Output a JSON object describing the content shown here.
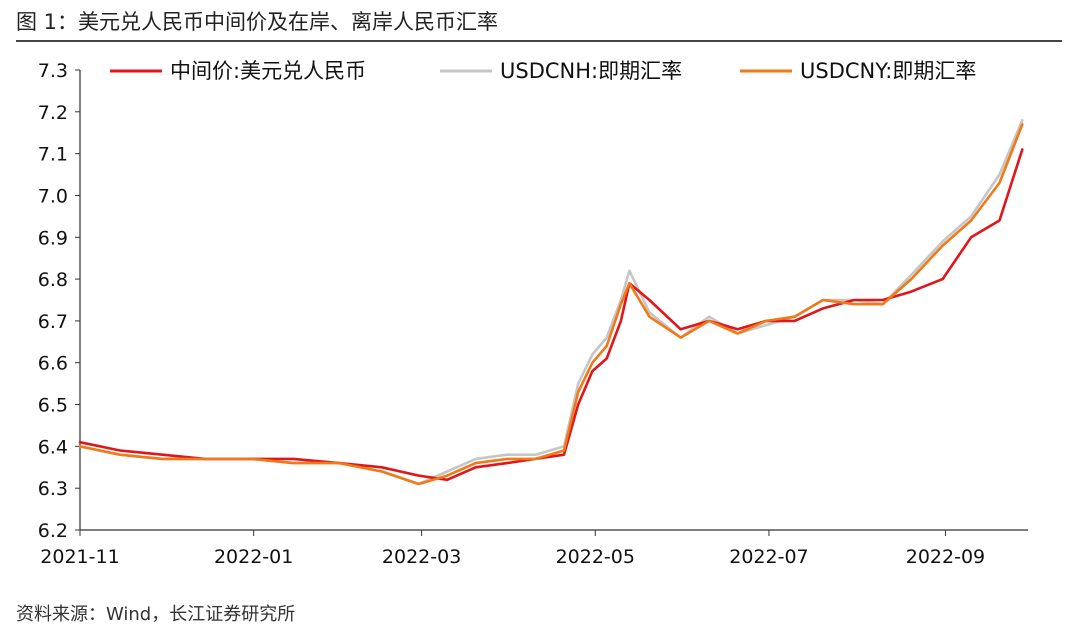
{
  "figure": {
    "title": "图 1：美元兑人民币中间价及在岸、离岸人民币汇率",
    "source": "资料来源：Wind，长江证券研究所"
  },
  "chart_data": {
    "type": "line",
    "title": "",
    "xlabel": "",
    "ylabel": "",
    "x_range": [
      "2021-11-01",
      "2022-09-30"
    ],
    "ylim": [
      6.2,
      7.3
    ],
    "yticks": [
      6.2,
      6.3,
      6.4,
      6.5,
      6.6,
      6.7,
      6.8,
      6.9,
      7.0,
      7.1,
      7.2,
      7.3
    ],
    "ytick_labels": [
      "6.2",
      "6.3",
      "6.4",
      "6.5",
      "6.6",
      "6.7",
      "6.8",
      "6.9",
      "7.0",
      "7.1",
      "7.2",
      "7.3"
    ],
    "xticks": [
      "2021-11-01",
      "2022-01-01",
      "2022-03-01",
      "2022-05-01",
      "2022-07-01",
      "2022-09-01"
    ],
    "xtick_labels": [
      "2021-11",
      "2022-01",
      "2022-03",
      "2022-05",
      "2022-07",
      "2022-09"
    ],
    "grid": false,
    "legend_position": "top",
    "series": [
      {
        "name": "中间价:美元兑人民币",
        "color": "#e0161b",
        "points": [
          [
            "2021-11-01",
            6.41
          ],
          [
            "2021-11-15",
            6.39
          ],
          [
            "2021-11-30",
            6.38
          ],
          [
            "2021-12-15",
            6.37
          ],
          [
            "2021-12-31",
            6.37
          ],
          [
            "2022-01-15",
            6.37
          ],
          [
            "2022-01-31",
            6.36
          ],
          [
            "2022-02-15",
            6.35
          ],
          [
            "2022-02-28",
            6.33
          ],
          [
            "2022-03-10",
            6.32
          ],
          [
            "2022-03-20",
            6.35
          ],
          [
            "2022-03-31",
            6.36
          ],
          [
            "2022-04-10",
            6.37
          ],
          [
            "2022-04-20",
            6.38
          ],
          [
            "2022-04-25",
            6.5
          ],
          [
            "2022-04-30",
            6.58
          ],
          [
            "2022-05-05",
            6.61
          ],
          [
            "2022-05-10",
            6.7
          ],
          [
            "2022-05-13",
            6.79
          ],
          [
            "2022-05-20",
            6.75
          ],
          [
            "2022-05-31",
            6.68
          ],
          [
            "2022-06-10",
            6.7
          ],
          [
            "2022-06-20",
            6.68
          ],
          [
            "2022-06-30",
            6.7
          ],
          [
            "2022-07-10",
            6.7
          ],
          [
            "2022-07-20",
            6.73
          ],
          [
            "2022-07-31",
            6.75
          ],
          [
            "2022-08-10",
            6.75
          ],
          [
            "2022-08-20",
            6.77
          ],
          [
            "2022-08-31",
            6.8
          ],
          [
            "2022-09-10",
            6.9
          ],
          [
            "2022-09-20",
            6.94
          ],
          [
            "2022-09-28",
            7.11
          ]
        ]
      },
      {
        "name": "USDCNH:即期汇率",
        "color": "#c6c6c6",
        "points": [
          [
            "2021-11-01",
            6.4
          ],
          [
            "2021-11-15",
            6.38
          ],
          [
            "2021-11-30",
            6.37
          ],
          [
            "2021-12-15",
            6.37
          ],
          [
            "2021-12-31",
            6.37
          ],
          [
            "2022-01-15",
            6.36
          ],
          [
            "2022-01-31",
            6.36
          ],
          [
            "2022-02-15",
            6.34
          ],
          [
            "2022-02-28",
            6.31
          ],
          [
            "2022-03-10",
            6.34
          ],
          [
            "2022-03-20",
            6.37
          ],
          [
            "2022-03-31",
            6.38
          ],
          [
            "2022-04-10",
            6.38
          ],
          [
            "2022-04-20",
            6.4
          ],
          [
            "2022-04-25",
            6.55
          ],
          [
            "2022-04-30",
            6.62
          ],
          [
            "2022-05-05",
            6.66
          ],
          [
            "2022-05-10",
            6.75
          ],
          [
            "2022-05-13",
            6.82
          ],
          [
            "2022-05-20",
            6.72
          ],
          [
            "2022-05-31",
            6.66
          ],
          [
            "2022-06-10",
            6.71
          ],
          [
            "2022-06-20",
            6.67
          ],
          [
            "2022-06-30",
            6.69
          ],
          [
            "2022-07-10",
            6.71
          ],
          [
            "2022-07-20",
            6.75
          ],
          [
            "2022-07-31",
            6.75
          ],
          [
            "2022-08-10",
            6.74
          ],
          [
            "2022-08-20",
            6.81
          ],
          [
            "2022-08-31",
            6.89
          ],
          [
            "2022-09-10",
            6.95
          ],
          [
            "2022-09-20",
            7.05
          ],
          [
            "2022-09-28",
            7.18
          ]
        ]
      },
      {
        "name": "USDCNY:即期汇率",
        "color": "#f07918",
        "points": [
          [
            "2021-11-01",
            6.4
          ],
          [
            "2021-11-15",
            6.38
          ],
          [
            "2021-11-30",
            6.37
          ],
          [
            "2021-12-15",
            6.37
          ],
          [
            "2021-12-31",
            6.37
          ],
          [
            "2022-01-15",
            6.36
          ],
          [
            "2022-01-31",
            6.36
          ],
          [
            "2022-02-15",
            6.34
          ],
          [
            "2022-02-28",
            6.31
          ],
          [
            "2022-03-10",
            6.33
          ],
          [
            "2022-03-20",
            6.36
          ],
          [
            "2022-03-31",
            6.37
          ],
          [
            "2022-04-10",
            6.37
          ],
          [
            "2022-04-20",
            6.39
          ],
          [
            "2022-04-25",
            6.53
          ],
          [
            "2022-04-30",
            6.6
          ],
          [
            "2022-05-05",
            6.64
          ],
          [
            "2022-05-10",
            6.74
          ],
          [
            "2022-05-13",
            6.79
          ],
          [
            "2022-05-20",
            6.71
          ],
          [
            "2022-05-31",
            6.66
          ],
          [
            "2022-06-10",
            6.7
          ],
          [
            "2022-06-20",
            6.67
          ],
          [
            "2022-06-30",
            6.7
          ],
          [
            "2022-07-10",
            6.71
          ],
          [
            "2022-07-20",
            6.75
          ],
          [
            "2022-07-31",
            6.74
          ],
          [
            "2022-08-10",
            6.74
          ],
          [
            "2022-08-20",
            6.8
          ],
          [
            "2022-08-31",
            6.88
          ],
          [
            "2022-09-10",
            6.94
          ],
          [
            "2022-09-20",
            7.03
          ],
          [
            "2022-09-28",
            7.17
          ]
        ]
      }
    ]
  }
}
